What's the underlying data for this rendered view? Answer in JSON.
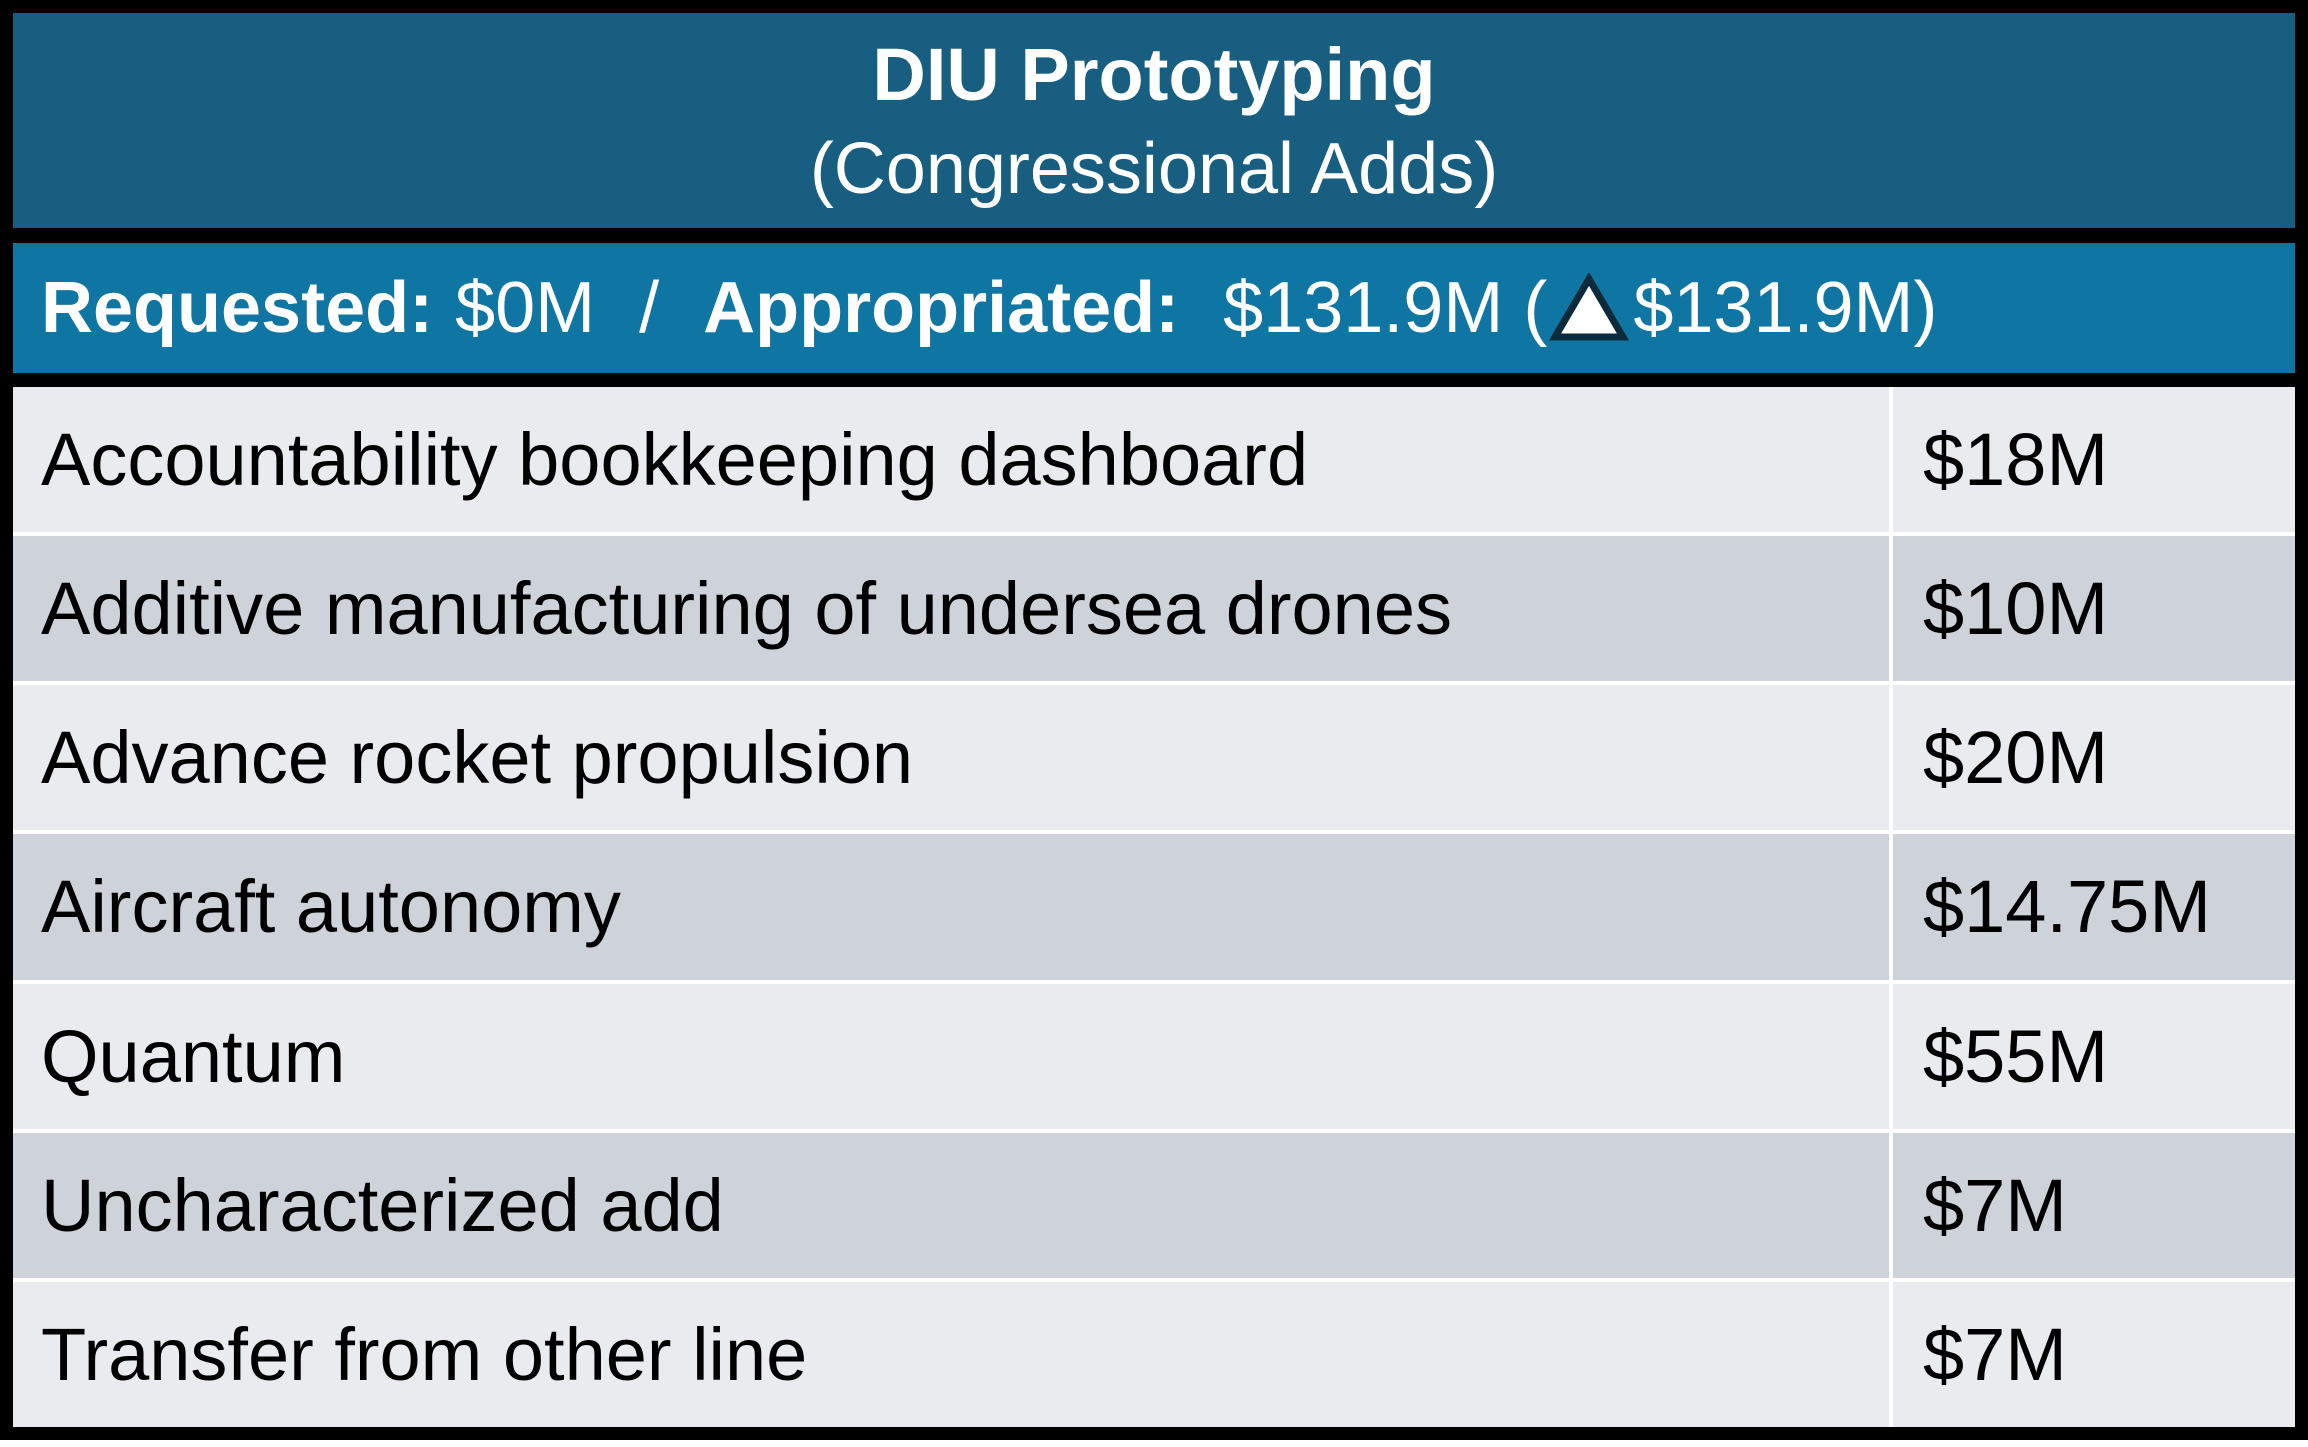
{
  "header": {
    "title": "DIU Prototyping",
    "subtitle": "(Congressional Adds)"
  },
  "summary": {
    "requested_label": "Requested:",
    "requested_value": "$0M",
    "divider": "/",
    "appropriated_label": "Appropriated:",
    "appropriated_value": "$131.9M (",
    "delta_icon": "delta-triangle-icon",
    "delta_value": "$131.9M)"
  },
  "rows": [
    {
      "name": "Accountability bookkeeping dashboard",
      "amount": "$18M"
    },
    {
      "name": "Additive manufacturing of undersea drones",
      "amount": "$10M"
    },
    {
      "name": "Advance rocket propulsion",
      "amount": "$20M"
    },
    {
      "name": "Aircraft autonomy",
      "amount": "$14.75M"
    },
    {
      "name": "Quantum",
      "amount": "$55M"
    },
    {
      "name": "Uncharacterized add",
      "amount": "$7M"
    },
    {
      "name": "Transfer from other line",
      "amount": "$7M"
    }
  ],
  "colors": {
    "title_bg": "#175e80",
    "summary_bg": "#0f75a3",
    "row_light": "#e9ebee",
    "row_dark": "#ced2d9",
    "border": "#000000"
  }
}
